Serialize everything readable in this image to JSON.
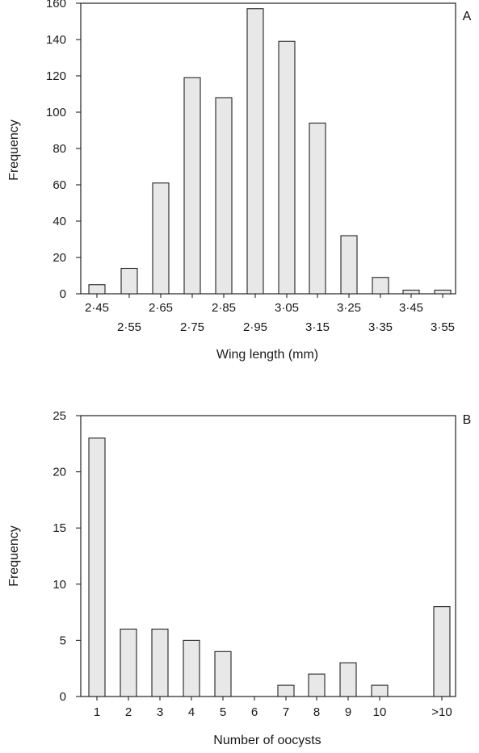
{
  "chart_data": [
    {
      "type": "bar",
      "panel_label": "A",
      "title": "",
      "xlabel": "Wing length (mm)",
      "ylabel": "Frequency",
      "ylim": [
        0,
        160
      ],
      "yticks": [
        0,
        20,
        40,
        60,
        80,
        100,
        120,
        140,
        160
      ],
      "categories": [
        "2·45",
        "2·55",
        "2·65",
        "2·75",
        "2·85",
        "2·95",
        "3·05",
        "3·15",
        "3·25",
        "3·35",
        "3·45",
        "3·55"
      ],
      "values": [
        5,
        14,
        61,
        119,
        108,
        157,
        139,
        94,
        32,
        9,
        2,
        2
      ],
      "grid": false
    },
    {
      "type": "bar",
      "panel_label": "B",
      "title": "",
      "xlabel": "Number of oocysts",
      "ylabel": "Frequency",
      "ylim": [
        0,
        25
      ],
      "yticks": [
        0,
        5,
        10,
        15,
        20,
        25
      ],
      "categories": [
        "1",
        "2",
        "3",
        "4",
        "5",
        "6",
        "7",
        "8",
        "9",
        "10",
        ">10"
      ],
      "values": [
        23,
        6,
        6,
        5,
        4,
        0,
        1,
        2,
        3,
        1,
        8
      ],
      "grid": false
    }
  ]
}
